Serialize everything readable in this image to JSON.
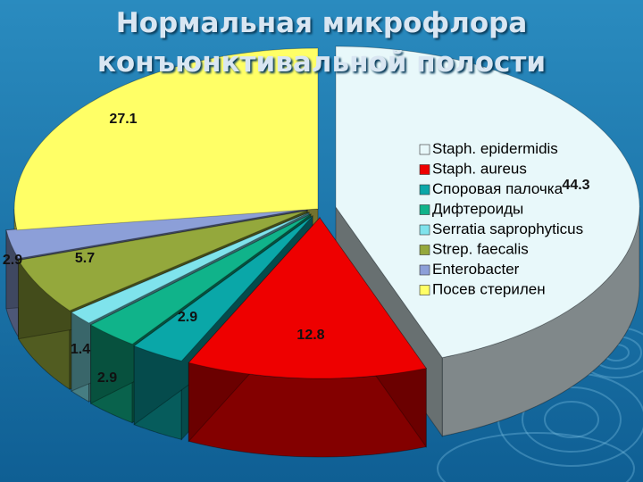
{
  "slide": {
    "title_line1": "Нормальная микрофлора",
    "title_line2": "конъюнктивальной полости"
  },
  "colors": {
    "background_top": "#2a8bbf",
    "background_bottom": "#0f5f94",
    "title": "#d9e6f2"
  },
  "chart_data": {
    "type": "pie",
    "style": "3d-exploded",
    "title": "",
    "legend_placement": "right",
    "slices": [
      {
        "name": "Staph. epidermidis",
        "value": 44.3,
        "color": "#e8f8fa"
      },
      {
        "name": "Staph. aureus",
        "value": 12.8,
        "color": "#ee0000"
      },
      {
        "name": "Споровая палочка",
        "value": 2.9,
        "color": "#0aa7a8"
      },
      {
        "name": "Дифтероиды",
        "value": 2.9,
        "color": "#10b38a"
      },
      {
        "name": "Serratia saprophyticus",
        "value": 1.4,
        "color": "#7fe3ec"
      },
      {
        "name": "Strep. faecalis",
        "value": 5.7,
        "color": "#94a83c"
      },
      {
        "name": "Enterobacter",
        "value": 2.9,
        "color": "#8c9fd8"
      },
      {
        "name": "Посев стерилен",
        "value": 27.1,
        "color": "#ffff66"
      }
    ],
    "data_labels": [
      "44.3",
      "12.8",
      "2.9",
      "2.9",
      "1.4",
      "5.7",
      "2.9",
      "27.1"
    ]
  }
}
